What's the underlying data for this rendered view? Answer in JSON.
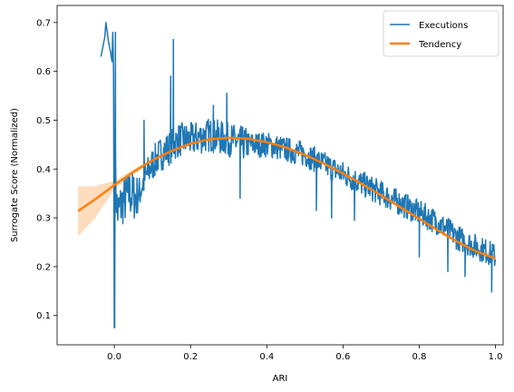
{
  "chart_data": {
    "type": "line",
    "title": "",
    "xlabel": "ARI",
    "ylabel": "Surrogate Score (Normalized)",
    "xlim": [
      -0.15,
      1.02
    ],
    "ylim": [
      0.04,
      0.735
    ],
    "xticks": [
      0.0,
      0.2,
      0.4,
      0.6,
      0.8,
      1.0
    ],
    "xtick_labels": [
      "0.0",
      "0.2",
      "0.4",
      "0.6",
      "0.8",
      "1.0"
    ],
    "yticks": [
      0.1,
      0.2,
      0.3,
      0.4,
      0.5,
      0.6,
      0.7
    ],
    "ytick_labels": [
      "0.1",
      "0.2",
      "0.3",
      "0.4",
      "0.5",
      "0.6",
      "0.7"
    ],
    "grid": false,
    "legend_position": "top-right",
    "colors": {
      "executions": "#1f77b4",
      "tendency": "#ff7f0e",
      "band": "#ffdcbd"
    },
    "series": [
      {
        "name": "Executions",
        "style": "noisy-line",
        "x": [
          -0.035,
          -0.025,
          -0.022,
          -0.015,
          -0.01,
          -0.006,
          -0.004,
          -0.002,
          0.0,
          0.002,
          0.004,
          0.008,
          0.02,
          0.04,
          0.06,
          0.08,
          0.1,
          0.12,
          0.14,
          0.155,
          0.17,
          0.2,
          0.25,
          0.3,
          0.35,
          0.4,
          0.45,
          0.5,
          0.55,
          0.6,
          0.65,
          0.7,
          0.75,
          0.8,
          0.85,
          0.9,
          0.95,
          0.98,
          1.0
        ],
        "y": [
          0.63,
          0.67,
          0.7,
          0.66,
          0.64,
          0.62,
          0.68,
          0.6,
          0.075,
          0.48,
          0.36,
          0.31,
          0.33,
          0.35,
          0.34,
          0.38,
          0.41,
          0.43,
          0.44,
          0.45,
          0.46,
          0.46,
          0.47,
          0.46,
          0.45,
          0.45,
          0.44,
          0.43,
          0.41,
          0.39,
          0.37,
          0.35,
          0.33,
          0.31,
          0.29,
          0.26,
          0.24,
          0.23,
          0.22
        ],
        "spikes": [
          {
            "x": 0.001,
            "y": 0.075
          },
          {
            "x": 0.003,
            "y": 0.68
          },
          {
            "x": 0.078,
            "y": 0.5
          },
          {
            "x": 0.148,
            "y": 0.59
          },
          {
            "x": 0.155,
            "y": 0.665
          },
          {
            "x": 0.26,
            "y": 0.53
          },
          {
            "x": 0.295,
            "y": 0.555
          },
          {
            "x": 0.33,
            "y": 0.34
          },
          {
            "x": 0.53,
            "y": 0.315
          },
          {
            "x": 0.57,
            "y": 0.3
          },
          {
            "x": 0.63,
            "y": 0.295
          },
          {
            "x": 0.8,
            "y": 0.22
          },
          {
            "x": 0.875,
            "y": 0.19
          },
          {
            "x": 0.92,
            "y": 0.18
          },
          {
            "x": 0.99,
            "y": 0.148
          }
        ]
      },
      {
        "name": "Tendency",
        "style": "smooth-line",
        "x": [
          -0.095,
          -0.05,
          0.0,
          0.05,
          0.1,
          0.15,
          0.2,
          0.25,
          0.3,
          0.35,
          0.4,
          0.45,
          0.5,
          0.55,
          0.6,
          0.65,
          0.7,
          0.75,
          0.8,
          0.85,
          0.9,
          0.95,
          1.0
        ],
        "y": [
          0.314,
          0.338,
          0.367,
          0.394,
          0.418,
          0.437,
          0.452,
          0.461,
          0.464,
          0.462,
          0.455,
          0.444,
          0.429,
          0.411,
          0.391,
          0.369,
          0.346,
          0.322,
          0.298,
          0.274,
          0.251,
          0.231,
          0.217
        ],
        "ci_lower": [
          0.262,
          0.3,
          0.358,
          0.389,
          0.414,
          0.434,
          0.449,
          0.459,
          0.462,
          0.46,
          0.453,
          0.442,
          0.427,
          0.409,
          0.389,
          0.367,
          0.344,
          0.32,
          0.296,
          0.271,
          0.247,
          0.225,
          0.208
        ],
        "ci_upper": [
          0.364,
          0.365,
          0.376,
          0.399,
          0.422,
          0.44,
          0.455,
          0.463,
          0.466,
          0.464,
          0.457,
          0.446,
          0.431,
          0.413,
          0.393,
          0.371,
          0.348,
          0.324,
          0.3,
          0.277,
          0.255,
          0.237,
          0.226
        ]
      }
    ]
  }
}
